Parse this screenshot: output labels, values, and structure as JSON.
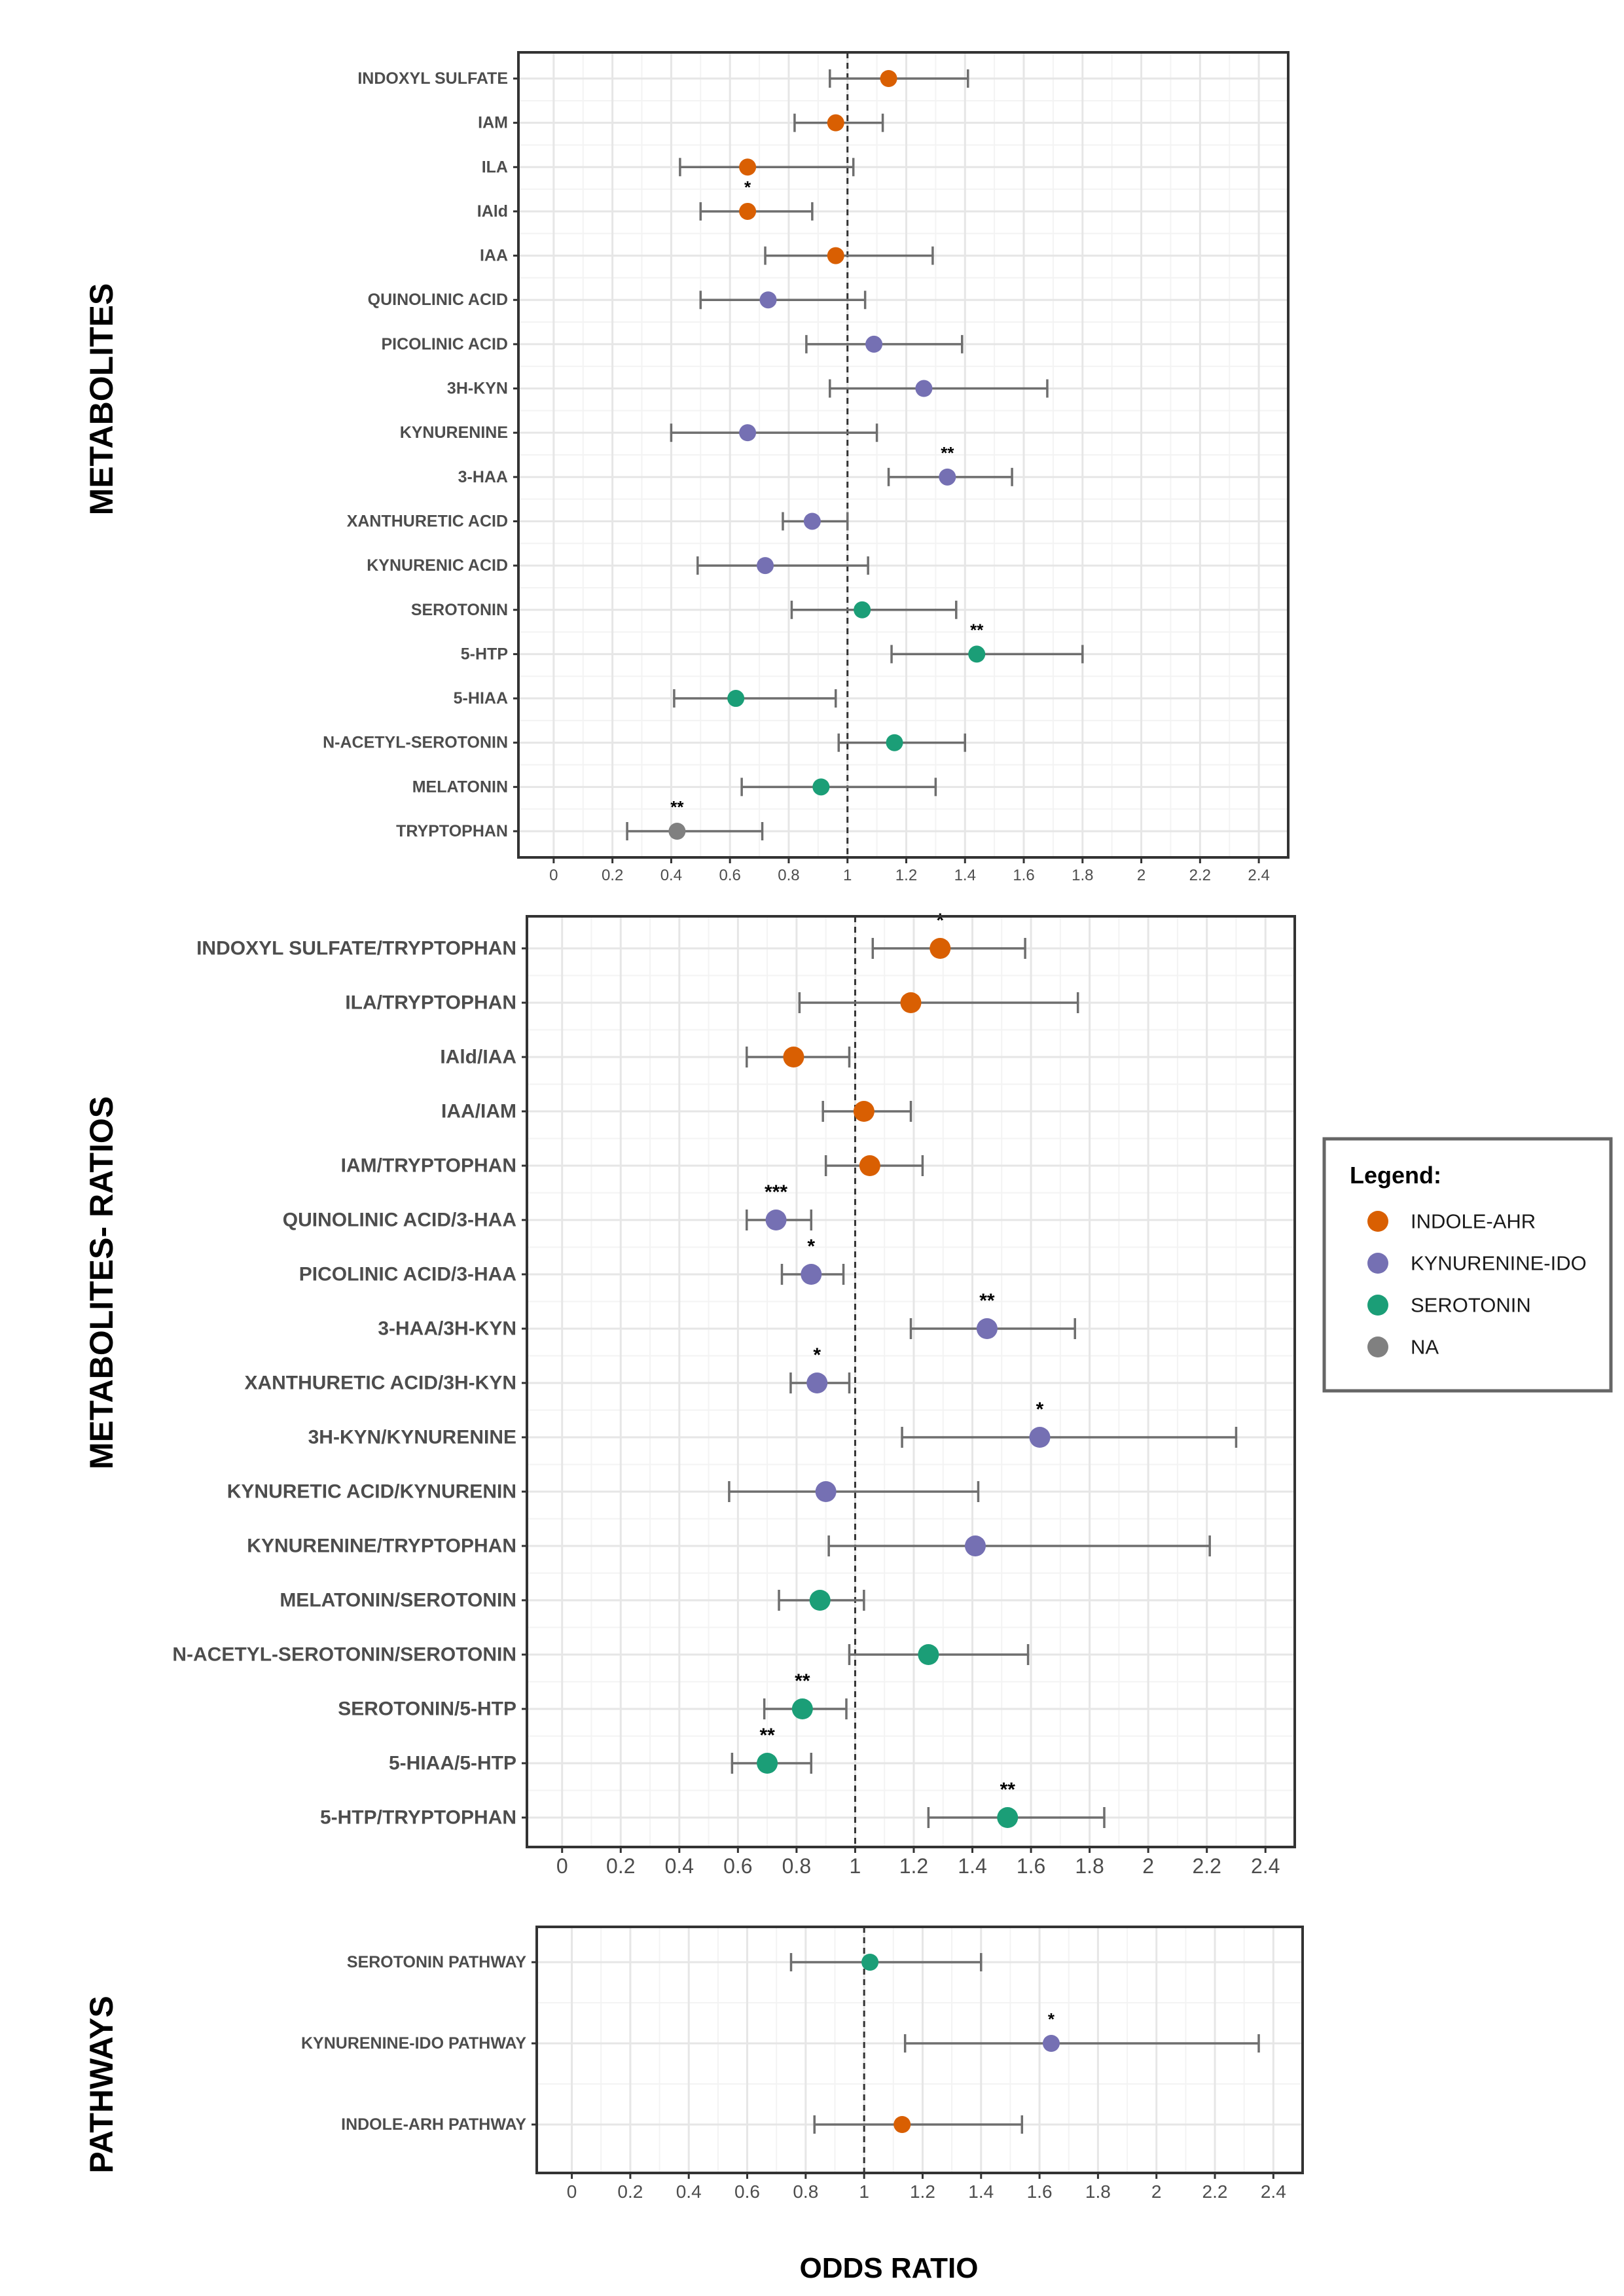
{
  "chart_data": [
    {
      "type": "forest",
      "panel_label": "METABOLITES",
      "xlim": [
        -0.12,
        2.5
      ],
      "xticks": [
        0,
        0.2,
        0.4,
        0.6,
        0.8,
        1,
        1.2,
        1.4,
        1.6,
        1.8,
        2,
        2.2,
        2.4
      ],
      "reference_line": 1,
      "rows": [
        {
          "label": "INDOXYL SULFATE",
          "or": 1.14,
          "lo": 0.94,
          "hi": 1.41,
          "group": "INDOLE-AHR",
          "sig": ""
        },
        {
          "label": "IAM",
          "or": 0.96,
          "lo": 0.82,
          "hi": 1.12,
          "group": "INDOLE-AHR",
          "sig": ""
        },
        {
          "label": "ILA",
          "or": 0.66,
          "lo": 0.43,
          "hi": 1.02,
          "group": "INDOLE-AHR",
          "sig": ""
        },
        {
          "label": "IAld",
          "or": 0.66,
          "lo": 0.5,
          "hi": 0.88,
          "group": "INDOLE-AHR",
          "sig": "*"
        },
        {
          "label": "IAA",
          "or": 0.96,
          "lo": 0.72,
          "hi": 1.29,
          "group": "INDOLE-AHR",
          "sig": ""
        },
        {
          "label": "QUINOLINIC ACID",
          "or": 0.73,
          "lo": 0.5,
          "hi": 1.06,
          "group": "KYNURENINE-IDO",
          "sig": ""
        },
        {
          "label": "PICOLINIC ACID",
          "or": 1.09,
          "lo": 0.86,
          "hi": 1.39,
          "group": "KYNURENINE-IDO",
          "sig": ""
        },
        {
          "label": "3H-KYN",
          "or": 1.26,
          "lo": 0.94,
          "hi": 1.68,
          "group": "KYNURENINE-IDO",
          "sig": ""
        },
        {
          "label": "KYNURENINE",
          "or": 0.66,
          "lo": 0.4,
          "hi": 1.1,
          "group": "KYNURENINE-IDO",
          "sig": ""
        },
        {
          "label": "3-HAA",
          "or": 1.34,
          "lo": 1.14,
          "hi": 1.56,
          "group": "KYNURENINE-IDO",
          "sig": "**"
        },
        {
          "label": "XANTHURETIC ACID",
          "or": 0.88,
          "lo": 0.78,
          "hi": 1.0,
          "group": "KYNURENINE-IDO",
          "sig": ""
        },
        {
          "label": "KYNURENIC ACID",
          "or": 0.72,
          "lo": 0.49,
          "hi": 1.07,
          "group": "KYNURENINE-IDO",
          "sig": ""
        },
        {
          "label": "SEROTONIN",
          "or": 1.05,
          "lo": 0.81,
          "hi": 1.37,
          "group": "SEROTONIN",
          "sig": ""
        },
        {
          "label": "5-HTP",
          "or": 1.44,
          "lo": 1.15,
          "hi": 1.8,
          "group": "SEROTONIN",
          "sig": "**"
        },
        {
          "label": "5-HIAA",
          "or": 0.62,
          "lo": 0.41,
          "hi": 0.96,
          "group": "SEROTONIN",
          "sig": ""
        },
        {
          "label": "N-ACETYL-SEROTONIN",
          "or": 1.16,
          "lo": 0.97,
          "hi": 1.4,
          "group": "SEROTONIN",
          "sig": ""
        },
        {
          "label": "MELATONIN",
          "or": 0.91,
          "lo": 0.64,
          "hi": 1.3,
          "group": "SEROTONIN",
          "sig": ""
        },
        {
          "label": "TRYPTOPHAN",
          "or": 0.42,
          "lo": 0.25,
          "hi": 0.71,
          "group": "NA",
          "sig": "**"
        }
      ]
    },
    {
      "type": "forest",
      "panel_label": "METABOLITES- RATIOS",
      "xlim": [
        -0.12,
        2.5
      ],
      "xticks": [
        0,
        0.2,
        0.4,
        0.6,
        0.8,
        1,
        1.2,
        1.4,
        1.6,
        1.8,
        2,
        2.2,
        2.4
      ],
      "reference_line": 1,
      "rows": [
        {
          "label": "INDOXYL SULFATE/TRYPTOPHAN",
          "or": 1.29,
          "lo": 1.06,
          "hi": 1.58,
          "group": "INDOLE-AHR",
          "sig": "*"
        },
        {
          "label": "ILA/TRYPTOPHAN",
          "or": 1.19,
          "lo": 0.81,
          "hi": 1.76,
          "group": "INDOLE-AHR",
          "sig": ""
        },
        {
          "label": "IAld/IAA",
          "or": 0.79,
          "lo": 0.63,
          "hi": 0.98,
          "group": "INDOLE-AHR",
          "sig": ""
        },
        {
          "label": "IAA/IAM",
          "or": 1.03,
          "lo": 0.89,
          "hi": 1.19,
          "group": "INDOLE-AHR",
          "sig": ""
        },
        {
          "label": "IAM/TRYPTOPHAN",
          "or": 1.05,
          "lo": 0.9,
          "hi": 1.23,
          "group": "INDOLE-AHR",
          "sig": ""
        },
        {
          "label": "QUINOLINIC ACID/3-HAA",
          "or": 0.73,
          "lo": 0.63,
          "hi": 0.85,
          "group": "KYNURENINE-IDO",
          "sig": "***"
        },
        {
          "label": "PICOLINIC ACID/3-HAA",
          "or": 0.85,
          "lo": 0.75,
          "hi": 0.96,
          "group": "KYNURENINE-IDO",
          "sig": "*"
        },
        {
          "label": "3-HAA/3H-KYN",
          "or": 1.45,
          "lo": 1.19,
          "hi": 1.75,
          "group": "KYNURENINE-IDO",
          "sig": "**"
        },
        {
          "label": "XANTHURETIC ACID/3H-KYN",
          "or": 0.87,
          "lo": 0.78,
          "hi": 0.98,
          "group": "KYNURENINE-IDO",
          "sig": "*"
        },
        {
          "label": "3H-KYN/KYNURENINE",
          "or": 1.63,
          "lo": 1.16,
          "hi": 2.3,
          "group": "KYNURENINE-IDO",
          "sig": "*"
        },
        {
          "label": "KYNURETIC ACID/KYNURENIN",
          "or": 0.9,
          "lo": 0.57,
          "hi": 1.42,
          "group": "KYNURENINE-IDO",
          "sig": ""
        },
        {
          "label": "KYNURENINE/TRYPTOPHAN",
          "or": 1.41,
          "lo": 0.91,
          "hi": 2.21,
          "group": "KYNURENINE-IDO",
          "sig": ""
        },
        {
          "label": "MELATONIN/SEROTONIN",
          "or": 0.88,
          "lo": 0.74,
          "hi": 1.03,
          "group": "SEROTONIN",
          "sig": ""
        },
        {
          "label": "N-ACETYL-SEROTONIN/SEROTONIN",
          "or": 1.25,
          "lo": 0.98,
          "hi": 1.59,
          "group": "SEROTONIN",
          "sig": ""
        },
        {
          "label": "SEROTONIN/5-HTP",
          "or": 0.82,
          "lo": 0.69,
          "hi": 0.97,
          "group": "SEROTONIN",
          "sig": "**"
        },
        {
          "label": "5-HIAA/5-HTP",
          "or": 0.7,
          "lo": 0.58,
          "hi": 0.85,
          "group": "SEROTONIN",
          "sig": "**"
        },
        {
          "label": "5-HTP/TRYPTOPHAN",
          "or": 1.52,
          "lo": 1.25,
          "hi": 1.85,
          "group": "SEROTONIN",
          "sig": "**"
        }
      ]
    },
    {
      "type": "forest",
      "panel_label": "PATHWAYS",
      "xlim": [
        -0.12,
        2.5
      ],
      "xticks": [
        0,
        0.2,
        0.4,
        0.6,
        0.8,
        1,
        1.2,
        1.4,
        1.6,
        1.8,
        2,
        2.2,
        2.4
      ],
      "reference_line": 1,
      "rows": [
        {
          "label": "SEROTONIN PATHWAY",
          "or": 1.02,
          "lo": 0.75,
          "hi": 1.4,
          "group": "SEROTONIN",
          "sig": ""
        },
        {
          "label": "KYNURENINE-IDO PATHWAY",
          "or": 1.64,
          "lo": 1.14,
          "hi": 2.35,
          "group": "KYNURENINE-IDO",
          "sig": "*"
        },
        {
          "label": "INDOLE-ARH PATHWAY",
          "or": 1.13,
          "lo": 0.83,
          "hi": 1.54,
          "group": "INDOLE-AHR",
          "sig": ""
        }
      ]
    }
  ],
  "xlabel": "ODDS RATIO",
  "legend": {
    "title": "Legend:",
    "position": "right",
    "items": [
      {
        "label": "INDOLE-AHR",
        "color": "#d95f02"
      },
      {
        "label": "KYNURENINE-IDO",
        "color": "#7570b3"
      },
      {
        "label": "SEROTONIN",
        "color": "#1b9e77"
      },
      {
        "label": "NA",
        "color": "#808080"
      }
    ]
  },
  "colors": {
    "INDOLE-AHR": "#d95f02",
    "KYNURENINE-IDO": "#7570b3",
    "SEROTONIN": "#1b9e77",
    "NA": "#808080",
    "errorbar": "#6e6e6e",
    "grid_major": "#e6e6e6",
    "grid_minor": "#f3f3f3"
  }
}
